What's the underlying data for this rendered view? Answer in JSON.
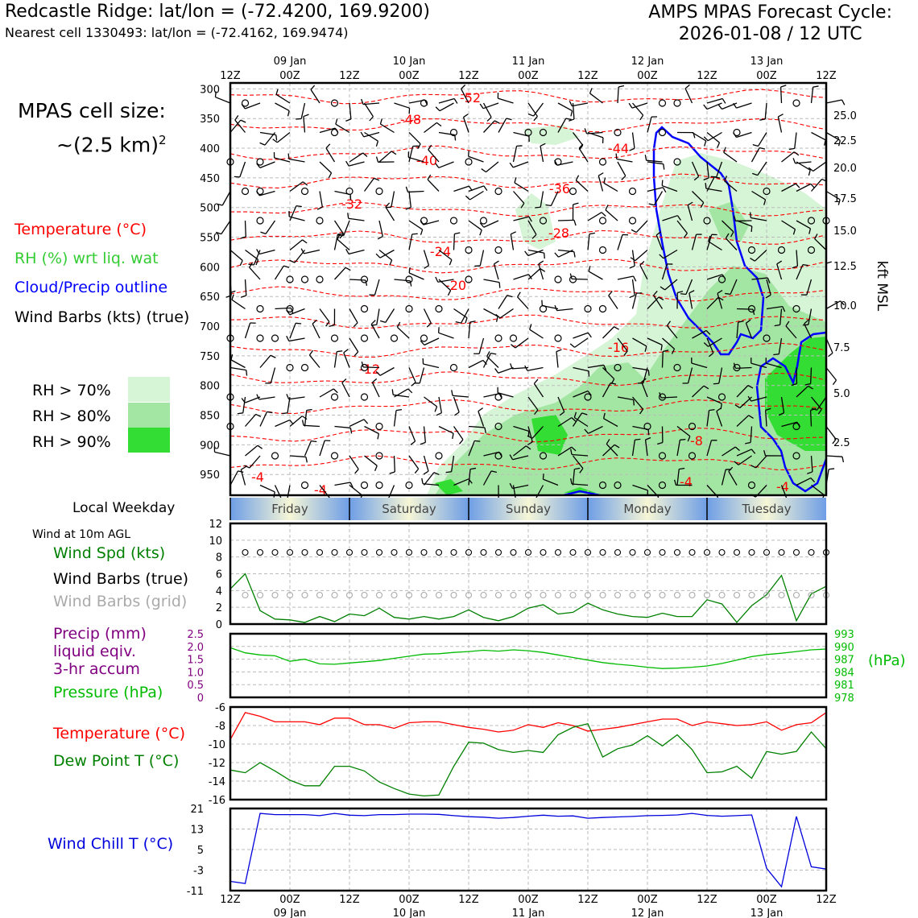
{
  "header": {
    "title_left": "Redcastle Ridge: lat/lon = (-72.4200, 169.9200)",
    "subtitle_left": "Nearest cell 1330493: lat/lon = (-72.4162, 169.9474)",
    "title_right_line1": "AMPS MPAS Forecast Cycle:",
    "title_right_line2": "2026-01-08 / 12 UTC"
  },
  "legend": {
    "cell_size_line1": "MPAS cell size:",
    "cell_size_line2": "~(2.5 km)",
    "cell_size_sup": "2",
    "temperature": "Temperature (°C)",
    "rh": "RH (%) wrt liq. wat",
    "cloud": "Cloud/Precip outline",
    "wind": "Wind Barbs (kts) (true)",
    "rh70": "RH > 70%",
    "rh80": "RH > 80%",
    "rh90": "RH > 90%",
    "local_weekday": "Local Weekday",
    "wind10m": "Wind at 10m AGL",
    "wind_spd": "Wind Spd (kts)",
    "wind_barbs_true": "Wind Barbs (true)",
    "wind_barbs_grid": "Wind Barbs (grid)",
    "precip_l1": "Precip (mm)",
    "precip_l2": "liquid eqiv.",
    "precip_l3": "3-hr accum",
    "pressure": "Pressure (hPa)",
    "temp2": "Temperature (°C)",
    "dewpoint": "Dew Point T (°C)",
    "windchill": "Wind Chill T (°C)"
  },
  "colors": {
    "temperature": "#ff0000",
    "rh_text": "#33cc33",
    "cloud": "#0000ff",
    "rh70": "#d6f5d6",
    "rh80": "#a3e6a3",
    "rh90": "#33dd33",
    "wind_spd": "#008000",
    "grid_barb": "#aaaaaa",
    "precip": "#800080",
    "pressure": "#00bb00",
    "dewpoint": "#008000",
    "windchill": "#0000dd"
  },
  "chart_data": [
    {
      "type": "heatmap",
      "panel": "time-height cross-section",
      "x_top_ticks": [
        "12Z",
        "00Z",
        "12Z",
        "00Z",
        "12Z",
        "00Z",
        "12Z",
        "00Z",
        "12Z",
        "00Z",
        "12Z"
      ],
      "x_top_dates": [
        "09 Jan",
        "10 Jan",
        "11 Jan",
        "12 Jan",
        "13 Jan"
      ],
      "y_left_ticks": [
        300,
        350,
        400,
        450,
        500,
        550,
        600,
        650,
        700,
        750,
        800,
        850,
        900,
        950
      ],
      "y_right_ticks": [
        "25.0",
        "22.5",
        "20.0",
        "17.5",
        "15.0",
        "12.5",
        "10.0",
        "7.5",
        "5.0",
        "2.5"
      ],
      "y_right_label": "kft MSL",
      "temperature_contour_labels": [
        "-52",
        "-48",
        "-44",
        "-40",
        "-36",
        "-32",
        "-28",
        "-24",
        "-20",
        "-16",
        "-12",
        "-8",
        "-4",
        "-4",
        "-4",
        "-4"
      ]
    },
    {
      "type": "table",
      "panel": "weekday",
      "days": [
        "Friday",
        "Saturday",
        "Sunday",
        "Monday",
        "Tuesday"
      ]
    },
    {
      "type": "line",
      "panel": "wind 10m",
      "ylim": [
        0,
        12
      ],
      "yticks": [
        "0",
        "2",
        "4",
        "6",
        "8",
        "10",
        "12"
      ],
      "x_hours": [
        0,
        3,
        6,
        9,
        12,
        15,
        18,
        21,
        24,
        27,
        30,
        33,
        36,
        39,
        42,
        45,
        48,
        51,
        54,
        57,
        60,
        63,
        66,
        69,
        72,
        75,
        78,
        81,
        84,
        87,
        90,
        93,
        96,
        99,
        102,
        105,
        108,
        111,
        114,
        117,
        120
      ],
      "series": [
        {
          "values": [
            4.2,
            6.0,
            1.6,
            0.6,
            0.5,
            0.2,
            0.9,
            0.3,
            1.2,
            1.0,
            1.9,
            0.8,
            0.6,
            0.9,
            0.6,
            0.9,
            1.7,
            0.8,
            0.4,
            0.9,
            1.9,
            2.3,
            1.2,
            1.4,
            2.5,
            1.7,
            1.2,
            0.9,
            0.8,
            1.3,
            0.9,
            0.9,
            2.9,
            2.4,
            0.2,
            2.2,
            3.5,
            5.8,
            0.4,
            3.6,
            4.5
          ]
        }
      ]
    },
    {
      "type": "line",
      "panel": "precip / pressure",
      "ylim_left": [
        0,
        2.5
      ],
      "yticks_left": [
        "0",
        "0.5",
        "1.0",
        "1.5",
        "2.0",
        "2.5"
      ],
      "ylim_right": [
        978,
        993
      ],
      "yticks_right": [
        "978",
        "981",
        "984",
        "987",
        "990",
        "993"
      ],
      "y_right_unit": "(hPa)",
      "x_hours": [
        0,
        3,
        6,
        9,
        12,
        15,
        18,
        21,
        24,
        27,
        30,
        33,
        36,
        39,
        42,
        45,
        48,
        51,
        54,
        57,
        60,
        63,
        66,
        69,
        72,
        75,
        78,
        81,
        84,
        87,
        90,
        93,
        96,
        99,
        102,
        105,
        108,
        111,
        114,
        117,
        120
      ],
      "series": [
        {
          "values": [
            989.7,
            988.5,
            988.0,
            987.8,
            986.5,
            987.0,
            985.9,
            985.8,
            986.1,
            986.4,
            986.7,
            987.2,
            987.7,
            988.2,
            988.3,
            988.6,
            988.8,
            989.1,
            988.9,
            989.2,
            989.0,
            988.6,
            988.0,
            987.4,
            986.8,
            986.2,
            985.8,
            985.5,
            985.1,
            984.8,
            984.9,
            985.1,
            985.4,
            986.0,
            986.8,
            987.6,
            988.1,
            988.4,
            988.8,
            989.2,
            989.4
          ]
        }
      ]
    },
    {
      "type": "line",
      "panel": "temperature / dew point",
      "ylim": [
        -16,
        -6
      ],
      "yticks": [
        "-16",
        "-14",
        "-12",
        "-10",
        "-8",
        "-6"
      ],
      "x_hours": [
        0,
        3,
        6,
        9,
        12,
        15,
        18,
        21,
        24,
        27,
        30,
        33,
        36,
        39,
        42,
        45,
        48,
        51,
        54,
        57,
        60,
        63,
        66,
        69,
        72,
        75,
        78,
        81,
        84,
        87,
        90,
        93,
        96,
        99,
        102,
        105,
        108,
        111,
        114,
        117,
        120
      ],
      "series": [
        {
          "values": [
            -9.5,
            -6.6,
            -7.0,
            -7.6,
            -7.6,
            -7.6,
            -7.9,
            -7.2,
            -7.2,
            -7.9,
            -7.9,
            -8.3,
            -7.7,
            -7.6,
            -7.6,
            -7.9,
            -8.2,
            -8.4,
            -8.7,
            -8.5,
            -7.9,
            -8.2,
            -7.7,
            -8.0,
            -8.6,
            -8.4,
            -8.2,
            -7.9,
            -7.6,
            -7.3,
            -7.3,
            -8.0,
            -7.6,
            -7.8,
            -8.0,
            -7.9,
            -7.6,
            -8.5,
            -7.9,
            -7.7,
            -6.6
          ]
        },
        {
          "values": [
            -12.8,
            -13.1,
            -12.0,
            -12.9,
            -13.9,
            -14.5,
            -14.5,
            -12.4,
            -12.4,
            -12.9,
            -14.1,
            -14.8,
            -15.4,
            -15.6,
            -15.5,
            -12.4,
            -9.8,
            -9.9,
            -10.6,
            -10.9,
            -10.7,
            -10.9,
            -9.0,
            -8.2,
            -7.8,
            -11.4,
            -10.5,
            -10.1,
            -9.1,
            -10.2,
            -9.0,
            -10.6,
            -13.1,
            -13.0,
            -12.4,
            -13.7,
            -10.8,
            -11.1,
            -10.8,
            -8.7,
            -10.5
          ]
        }
      ]
    },
    {
      "type": "line",
      "panel": "wind chill",
      "ylim": [
        -11,
        21
      ],
      "yticks": [
        "-11",
        "-3",
        "5",
        "13",
        "21"
      ],
      "x_ticks": [
        "12Z",
        "00Z",
        "12Z",
        "00Z",
        "12Z",
        "00Z",
        "12Z",
        "00Z",
        "12Z",
        "00Z",
        "12Z"
      ],
      "x_dates": [
        "09 Jan",
        "10 Jan",
        "11 Jan",
        "12 Jan",
        "13 Jan"
      ],
      "x_hours": [
        0,
        3,
        6,
        9,
        12,
        15,
        18,
        21,
        24,
        27,
        30,
        33,
        36,
        39,
        42,
        45,
        48,
        51,
        54,
        57,
        60,
        63,
        66,
        69,
        72,
        75,
        78,
        81,
        84,
        87,
        90,
        93,
        96,
        99,
        102,
        105,
        108,
        111,
        114,
        117,
        120
      ],
      "series": [
        {
          "values": [
            -7.4,
            -8.2,
            19.1,
            18.6,
            18.6,
            18.6,
            18.2,
            19.1,
            18.4,
            18.2,
            18.6,
            18.6,
            18.8,
            18.8,
            18.7,
            18.2,
            17.8,
            17.6,
            17.2,
            17.5,
            18.0,
            18.4,
            18.0,
            18.1,
            17.2,
            17.5,
            17.7,
            17.9,
            18.2,
            18.3,
            18.5,
            19.1,
            18.3,
            18.0,
            18.2,
            18.5,
            -2.3,
            -9.5,
            17.9,
            -1.7,
            -2.6
          ]
        }
      ]
    }
  ]
}
